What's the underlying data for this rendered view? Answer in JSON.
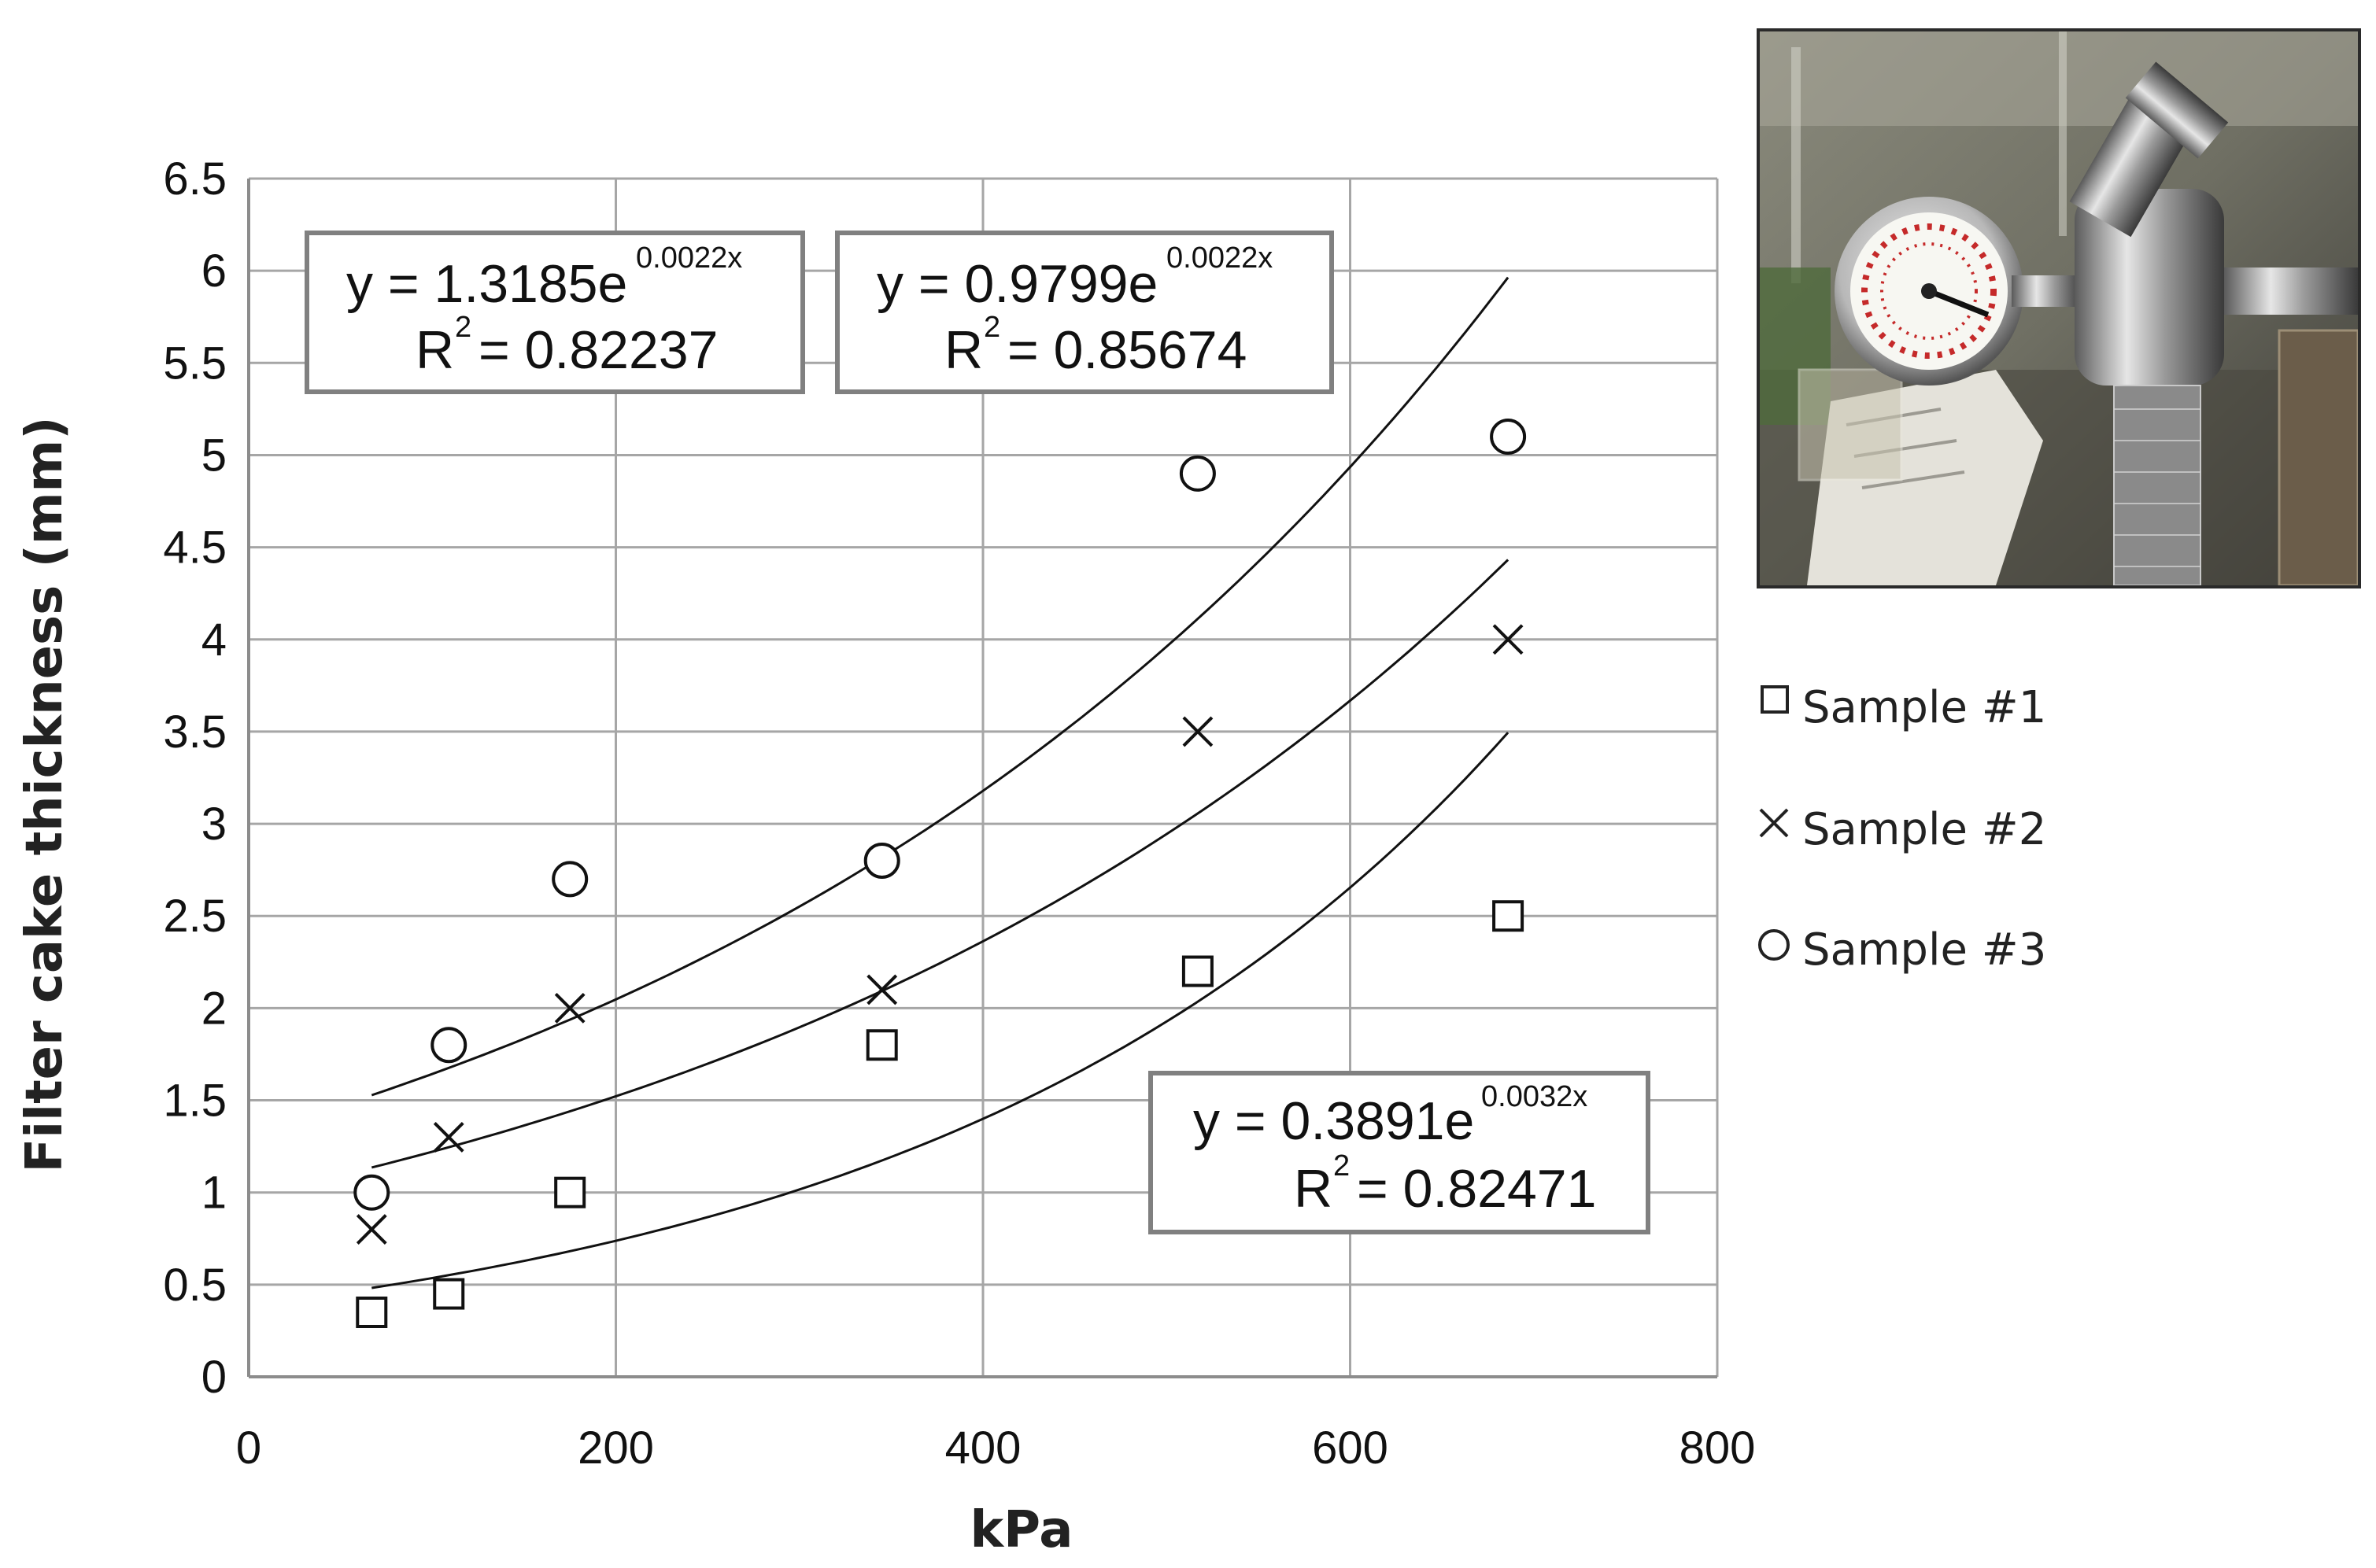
{
  "chart_data": {
    "type": "scatter",
    "xlabel": "kPa",
    "ylabel": "Filter cake thickness (mm)",
    "xlim": [
      0,
      800
    ],
    "ylim": [
      0,
      6.5
    ],
    "x_ticks": [
      "0",
      "200",
      "400",
      "600",
      "800"
    ],
    "y_ticks": [
      "0",
      "0.5",
      "1",
      "1.5",
      "2",
      "2.5",
      "3",
      "3.5",
      "4",
      "4.5",
      "5",
      "5.5",
      "6",
      "6.5"
    ],
    "grid": true,
    "legend_position": "right",
    "series": [
      {
        "name": "Sample #1",
        "marker": "square",
        "x": [
          67,
          109,
          175,
          345,
          517,
          686
        ],
        "y": [
          0.35,
          0.45,
          1.0,
          1.8,
          2.2,
          2.5
        ],
        "trend": {
          "a": 0.3891,
          "b": 0.0032,
          "x_range": [
            67,
            686
          ],
          "equation": "y = 0.3891e",
          "exponent": "0.0032x",
          "r2_label": "R",
          "r2_value": "= 0.82471"
        }
      },
      {
        "name": "Sample #2",
        "marker": "x",
        "x": [
          67,
          109,
          175,
          345,
          517,
          686
        ],
        "y": [
          0.8,
          1.3,
          2.0,
          2.1,
          3.5,
          4.0
        ],
        "trend": {
          "a": 0.9799,
          "b": 0.0022,
          "x_range": [
            67,
            686
          ],
          "equation": "y = 0.9799e",
          "exponent": "0.0022x",
          "r2_label": "R",
          "r2_value": "= 0.85674"
        }
      },
      {
        "name": "Sample #3",
        "marker": "circle",
        "x": [
          67,
          109,
          175,
          345,
          517,
          686
        ],
        "y": [
          1.0,
          1.8,
          2.7,
          2.8,
          4.9,
          5.1
        ],
        "trend": {
          "a": 1.3185,
          "b": 0.0022,
          "x_range": [
            67,
            686
          ],
          "equation": "y = 1.3185e",
          "exponent": "0.0022x",
          "r2_label": "R",
          "r2_value": "= 0.82237"
        }
      }
    ]
  },
  "photo": {
    "subject": "pressure-gauge-regulator"
  }
}
